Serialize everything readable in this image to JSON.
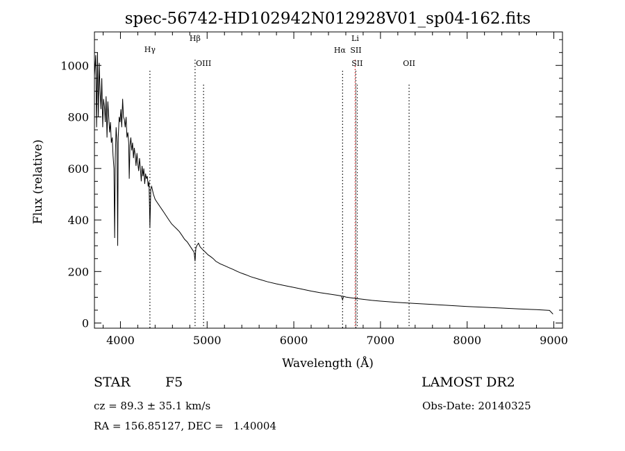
{
  "chart_data": {
    "type": "line",
    "title": "spec-56742-HD102942N012928V01_sp04-162.fits",
    "xlabel": "Wavelength (Å)",
    "ylabel": "Flux (relative)",
    "xlim": [
      3700,
      9100
    ],
    "ylim": [
      -20,
      1130
    ],
    "x_ticks": [
      4000,
      5000,
      6000,
      7000,
      8000,
      9000
    ],
    "x_tick_labels": [
      "4000",
      "5000",
      "6000",
      "7000",
      "8000",
      "9000"
    ],
    "y_ticks": [
      0,
      200,
      400,
      600,
      800,
      1000
    ],
    "y_tick_labels": [
      "0",
      "200",
      "400",
      "600",
      "800",
      "1000"
    ],
    "grid": false,
    "line_color": "#000000",
    "spectrum": {
      "x": [
        3700,
        3715,
        3725,
        3735,
        3745,
        3755,
        3765,
        3775,
        3785,
        3795,
        3805,
        3815,
        3825,
        3835,
        3845,
        3855,
        3865,
        3875,
        3885,
        3895,
        3905,
        3915,
        3925,
        3933,
        3940,
        3950,
        3960,
        3968,
        3975,
        3985,
        3995,
        4005,
        4015,
        4025,
        4035,
        4045,
        4055,
        4065,
        4075,
        4085,
        4095,
        4101,
        4110,
        4120,
        4130,
        4140,
        4150,
        4160,
        4170,
        4180,
        4190,
        4200,
        4210,
        4220,
        4230,
        4240,
        4250,
        4260,
        4270,
        4280,
        4290,
        4300,
        4310,
        4320,
        4330,
        4340,
        4350,
        4360,
        4380,
        4400,
        4420,
        4440,
        4460,
        4480,
        4500,
        4530,
        4560,
        4590,
        4620,
        4650,
        4680,
        4710,
        4740,
        4770,
        4800,
        4830,
        4850,
        4861,
        4870,
        4880,
        4900,
        4920,
        4950,
        4980,
        5010,
        5040,
        5070,
        5100,
        5150,
        5200,
        5250,
        5300,
        5350,
        5400,
        5450,
        5500,
        5600,
        5700,
        5800,
        5900,
        6000,
        6100,
        6200,
        6300,
        6400,
        6500,
        6550,
        6563,
        6575,
        6600,
        6700,
        6800,
        6900,
        7000,
        7200,
        7400,
        7600,
        7800,
        8000,
        8200,
        8400,
        8600,
        8800,
        8950,
        8990
      ],
      "y": [
        960,
        1040,
        760,
        1050,
        800,
        1010,
        900,
        830,
        950,
        760,
        870,
        840,
        780,
        880,
        720,
        860,
        800,
        740,
        780,
        700,
        720,
        650,
        600,
        330,
        640,
        760,
        700,
        300,
        720,
        800,
        780,
        830,
        760,
        870,
        800,
        790,
        760,
        800,
        720,
        740,
        700,
        560,
        690,
        720,
        670,
        700,
        640,
        680,
        650,
        610,
        660,
        620,
        590,
        640,
        600,
        550,
        610,
        570,
        600,
        540,
        580,
        560,
        570,
        530,
        550,
        370,
        520,
        530,
        500,
        480,
        470,
        460,
        450,
        440,
        430,
        415,
        400,
        385,
        375,
        365,
        355,
        340,
        325,
        315,
        300,
        285,
        275,
        240,
        290,
        300,
        310,
        295,
        285,
        275,
        265,
        258,
        250,
        240,
        230,
        223,
        215,
        208,
        200,
        193,
        187,
        180,
        170,
        160,
        152,
        145,
        138,
        131,
        124,
        118,
        113,
        108,
        105,
        90,
        104,
        101,
        96,
        92,
        88,
        85,
        80,
        76,
        72,
        68,
        64,
        61,
        58,
        55,
        52,
        49,
        35
      ]
    },
    "lines": [
      {
        "label": "Hγ",
        "x": 4340,
        "color": "#000000"
      },
      {
        "label": "Hβ",
        "x": 4861,
        "color": "#000000"
      },
      {
        "label": "OIII",
        "x": 4959,
        "color": "#000000"
      },
      {
        "label": "Hα",
        "x": 6563,
        "color": "#000000"
      },
      {
        "label": "Li",
        "x": 6708,
        "color": "#cc0000"
      },
      {
        "label": "SII",
        "x": 6716,
        "color": "#000000"
      },
      {
        "label": "SII",
        "x": 6731,
        "color": "#000000"
      },
      {
        "label": "OII",
        "x": 7330,
        "color": "#000000"
      }
    ]
  },
  "info": {
    "object_type": "STAR",
    "subclass": "F5",
    "survey": "LAMOST DR2",
    "redshift": "cz = 89.3 ± 35.1 km/s",
    "obs_date": "Obs-Date: 20140325",
    "coords": "RA = 156.85127, DEC =   1.40004"
  }
}
